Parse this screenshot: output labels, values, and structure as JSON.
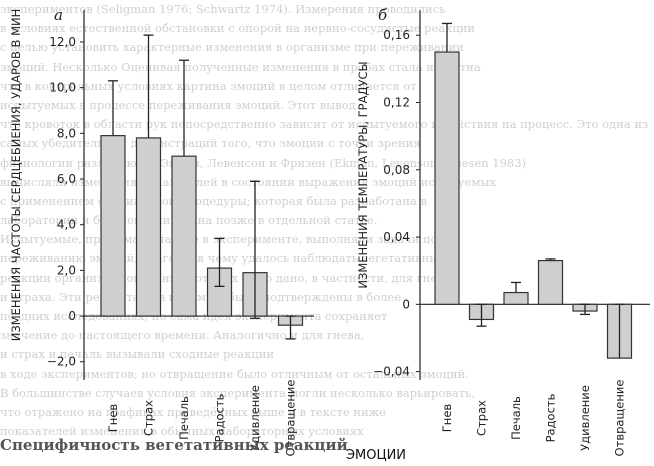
{
  "figure": {
    "background_text": [
      "экспериментов (Seligman 1976; Schwartz 1974). Измерения проводились",
      "в условиях естественной обстановки с опорой на нервно-сосудистые реакции",
      "с целью установить характерные изменения в организме при переживании",
      "эмоций. Несколько Оценивая полученные изменения в пробах стала известна",
      "что в контрольных условиях картина эмоций в целом отличается от",
      "испытуемых в процессе переживания эмоций. Этот вывод",
      "что кровоток в области рук непосредственно зависит от испытуемого и действия на процесс. Это одна из",
      "самых убедительных демонстраций того, что эмоции с точки зрения",
      "физиологии различаются Экман, Левенсон и Фризен (Ekman, Levenson, Friesen 1983)",
      "вычисляли изменения показателей в состоянии выражения эмоций испытуемых",
      "с применением специальной процедуры; которая была разработана в",
      "лаборатории и была опубликована позже в отдельной статье.",
      "Испытуемые, принимая участие в эксперименте, выполняли задачи по",
      "переживанию эмоций, благодаря чему удалось наблюдать вегетативные",
      "реакции организма, описание которых было дано, в частности, для гнева",
      "и страха. Эти результаты в целом не были подтверждены в более",
      "поздних исследованиях, но сама идея эксперимента сохраняет",
      "значение до настоящего времени. Аналогично и для гнева,",
      "и страх и печаль вызывали сходные реакции",
      "в ходе экспериментов; но отвращение было отличным от остальных эмоций.",
      "В большинстве случаев условия эксперимента могли несколько варьировать,",
      "что отражено на графиках приведённых выше и в тексте ниже",
      "показателей изменения в обычных лабораторных условиях"
    ],
    "caption": "Специфичность вегетативных реакций"
  },
  "chart_data": [
    {
      "type": "bar",
      "panel_label": "а",
      "ylabel": "ИЗМЕНЕНИЯ ЧАСТОТЫ СЕРДЦЕБИЕНИЯ, УДАРОВ В МИН",
      "ylim": [
        -2.8,
        13.4
      ],
      "yticks": [
        "12,0",
        "10,0",
        "8,0",
        "6,0",
        "4,0",
        "2,0",
        "0",
        "−2,0"
      ],
      "ytick_values": [
        12,
        10,
        8,
        6,
        4,
        2,
        0,
        -2
      ],
      "categories": [
        "Гнев",
        "Страх",
        "Печаль",
        "Радость",
        "Удивление",
        "Отвращение"
      ],
      "values": [
        7.9,
        7.8,
        7.0,
        2.1,
        1.9,
        -0.4
      ],
      "error_high": [
        10.3,
        12.3,
        11.2,
        3.4,
        5.9,
        0.0
      ],
      "error_low": [
        null,
        null,
        null,
        1.3,
        -0.1,
        -1.0
      ],
      "grid": false
    },
    {
      "type": "bar",
      "panel_label": "б",
      "ylabel": "ИЗМЕНЕНИЯ ТЕМПЕРАТУРЫ, ГРАДУСЫ",
      "ylim": [
        -0.045,
        0.175
      ],
      "yticks": [
        "0,16",
        "0,12",
        "0,08",
        "0,04",
        "0",
        "−0,04"
      ],
      "ytick_values": [
        0.16,
        0.12,
        0.08,
        0.04,
        0,
        -0.04
      ],
      "categories": [
        "Гнев",
        "Страх",
        "Печаль",
        "Радость",
        "Удивление",
        "Отвращение"
      ],
      "values": [
        0.15,
        -0.009,
        0.007,
        0.026,
        -0.004,
        -0.032
      ],
      "error_high": [
        0.167,
        0.0,
        0.013,
        0.027,
        0.0,
        0.0
      ],
      "error_low": [
        null,
        -0.013,
        null,
        null,
        -0.006,
        null
      ],
      "grid": false
    }
  ],
  "shared_xlabel": "ЭМОЦИИ",
  "colors": {
    "bar_fill": "#cfcfcf",
    "bar_stroke": "#333333",
    "axis": "#222222",
    "background_text": "#cfcfcf"
  }
}
